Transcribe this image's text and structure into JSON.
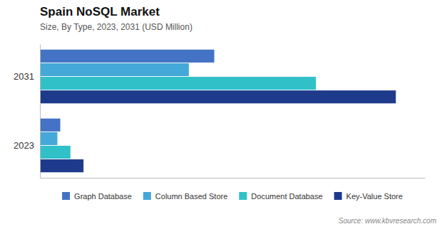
{
  "chart_data": {
    "type": "bar",
    "orientation": "horizontal",
    "title": "Spain NoSQL Market",
    "subtitle": "Size, By Type, 2023, 2031 (USD Million)",
    "annotations": [
      "Source: www.kbvresearch.com"
    ],
    "categories": [
      "2031",
      "2023"
    ],
    "series": [
      {
        "name": "Graph Database",
        "color": "#4472c4",
        "values": [
          240,
          28
        ]
      },
      {
        "name": "Column Based Store",
        "color": "#44a8d8",
        "values": [
          205,
          24
        ]
      },
      {
        "name": "Document Database",
        "color": "#30c0c8",
        "values": [
          380,
          42
        ]
      },
      {
        "name": "Key-Value Store",
        "color": "#1e3a8a",
        "values": [
          490,
          60
        ]
      }
    ],
    "xlim": [
      0,
      530
    ],
    "xticks": [],
    "tick_labels": "y",
    "grid": false,
    "legend": "bottom"
  }
}
